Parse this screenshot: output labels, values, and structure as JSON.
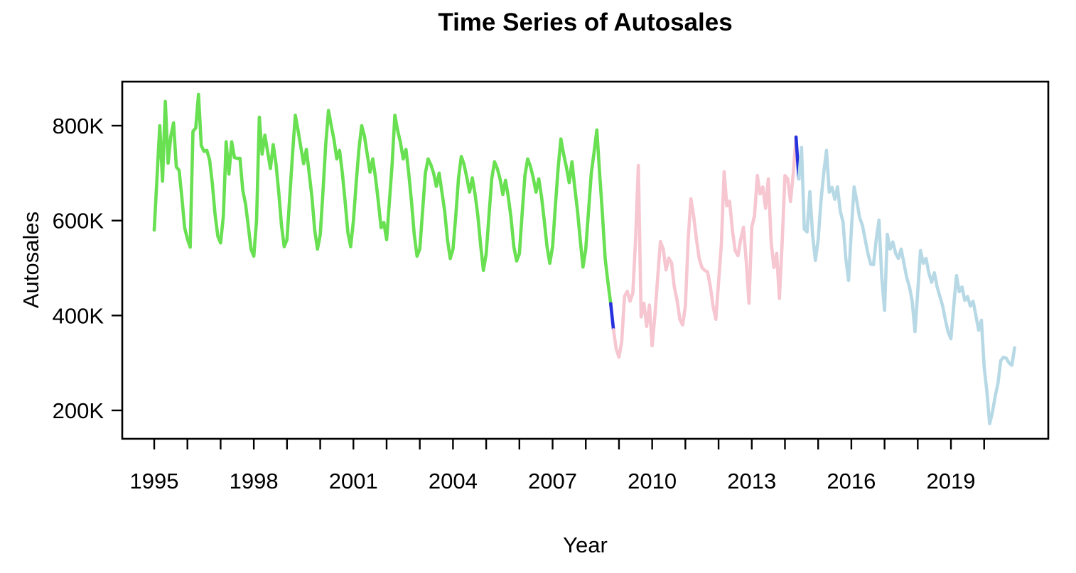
{
  "chart_data": {
    "type": "line",
    "title": "Time Series of Autosales",
    "xlabel": "Year",
    "ylabel": "Autosales",
    "unit": "autosales, thousands (K)",
    "frequency": "monthly",
    "x_range_years": [
      1995.0,
      2020.92
    ],
    "ylim_k": [
      140,
      893
    ],
    "grid": "off",
    "legend": "none",
    "y_ticks": [
      {
        "value": 200,
        "label": "200K"
      },
      {
        "value": 400,
        "label": "400K"
      },
      {
        "value": 600,
        "label": "600K"
      },
      {
        "value": 800,
        "label": "800K"
      }
    ],
    "x_ticks_years": [
      1995,
      1996,
      1997,
      1998,
      1999,
      2000,
      2001,
      2002,
      2003,
      2004,
      2005,
      2006,
      2007,
      2008,
      2009,
      2010,
      2011,
      2012,
      2013,
      2014,
      2015,
      2016,
      2017,
      2018,
      2019,
      2020
    ],
    "x_tick_labels": [
      {
        "year": 1995,
        "label": "1995"
      },
      {
        "year": 1998,
        "label": "1998"
      },
      {
        "year": 2001,
        "label": "2001"
      },
      {
        "year": 2004,
        "label": "2004"
      },
      {
        "year": 2007,
        "label": "2007"
      },
      {
        "year": 2010,
        "label": "2010"
      },
      {
        "year": 2013,
        "label": "2013"
      },
      {
        "year": 2016,
        "label": "2016"
      },
      {
        "year": 2019,
        "label": "2019"
      }
    ],
    "colors": {
      "regime1_green": "#68e052",
      "regime2_pink": "#f6c6d1",
      "regime3_lightblue": "#b7d9e5",
      "break_connector_blue": "#2632dd",
      "axis": "#000000",
      "background": "#ffffff"
    },
    "segments": [
      {
        "name": "regime-1-green",
        "color": "#68e052",
        "start": "1995-01",
        "values_k": [
          580,
          690,
          800,
          683,
          851,
          721,
          778,
          806,
          713,
          706,
          649,
          585,
          561,
          544,
          788,
          795,
          866,
          758,
          746,
          748,
          728,
          679,
          613,
          567,
          553,
          610,
          766,
          698,
          766,
          733,
          731,
          731,
          664,
          635,
          589,
          540,
          525,
          600,
          818,
          740,
          780,
          745,
          710,
          760,
          720,
          660,
          590,
          545,
          560,
          650,
          740,
          822,
          790,
          755,
          720,
          750,
          700,
          650,
          580,
          540,
          570,
          660,
          760,
          832,
          800,
          770,
          730,
          748,
          700,
          640,
          575,
          545,
          600,
          680,
          750,
          800,
          778,
          740,
          702,
          730,
          690,
          640,
          585,
          596,
          560,
          640,
          720,
          822,
          790,
          765,
          730,
          750,
          700,
          640,
          570,
          525,
          540,
          620,
          700,
          730,
          718,
          700,
          672,
          700,
          660,
          620,
          560,
          520,
          540,
          610,
          690,
          735,
          718,
          690,
          660,
          690,
          655,
          610,
          548,
          495,
          530,
          610,
          688,
          724,
          710,
          688,
          655,
          685,
          650,
          605,
          545,
          515,
          530,
          615,
          695,
          730,
          714,
          690,
          660,
          688,
          650,
          600,
          545,
          510,
          545,
          630,
          710,
          772,
          740,
          712,
          680,
          724,
          670,
          620,
          560,
          502,
          540,
          620,
          700,
          744,
          791,
          700,
          615,
          520,
          470,
          425
        ]
      },
      {
        "name": "break-1-blue",
        "color": "#2632dd",
        "start": "2008-10",
        "values_k": [
          425,
          370
        ]
      },
      {
        "name": "regime-2-pink",
        "color": "#f6c6d1",
        "start": "2008-11",
        "values_k": [
          370,
          330,
          312,
          345,
          440,
          451,
          430,
          447,
          560,
          716,
          397,
          426,
          377,
          422,
          336,
          400,
          480,
          556,
          540,
          496,
          521,
          511,
          460,
          432,
          392,
          380,
          420,
          560,
          646,
          610,
          561,
          520,
          501,
          495,
          492,
          462,
          420,
          392,
          471,
          550,
          703,
          631,
          641,
          580,
          537,
          526,
          560,
          586,
          514,
          426,
          586,
          611,
          695,
          656,
          671,
          626,
          688,
          556,
          501,
          531,
          436,
          556,
          695,
          688,
          640,
          700,
          776
        ]
      },
      {
        "name": "break-2-blue",
        "color": "#2632dd",
        "start": "2014-05",
        "values_k": [
          776,
          688
        ]
      },
      {
        "name": "regime-3-lightblue",
        "color": "#b7d9e5",
        "start": "2014-06",
        "values_k": [
          688,
          754,
          582,
          576,
          661,
          570,
          516,
          560,
          640,
          700,
          748,
          660,
          670,
          645,
          671,
          620,
          597,
          520,
          474,
          580,
          671,
          640,
          606,
          590,
          560,
          530,
          508,
          507,
          560,
          601,
          480,
          411,
          571,
          540,
          555,
          531,
          520,
          540,
          510,
          480,
          460,
          430,
          366,
          450,
          537,
          510,
          520,
          490,
          470,
          490,
          460,
          440,
          420,
          390,
          365,
          351,
          420,
          484,
          450,
          460,
          432,
          440,
          420,
          430,
          400,
          369,
          390,
          291,
          240,
          172,
          196,
          230,
          257,
          305,
          312,
          310,
          300,
          295,
          332
        ]
      }
    ]
  }
}
